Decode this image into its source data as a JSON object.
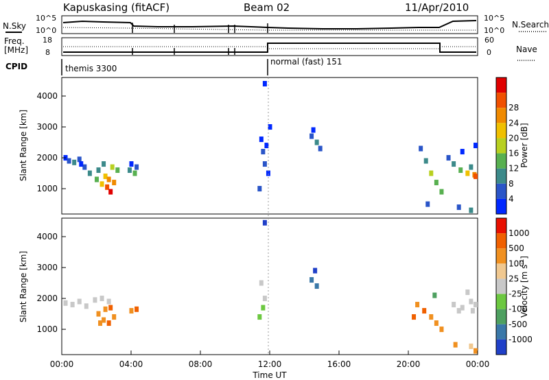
{
  "header": {
    "station": "Kapuskasing (fitACF)",
    "beam": "Beam 02",
    "date": "11/Apr/2010"
  },
  "strips": {
    "nsky_label": "N.Sky",
    "nsky_ticks": [
      "10^5",
      "10^0"
    ],
    "nsearch_label": "N.Search",
    "nsearch_ticks": [
      "10^5",
      "10^0"
    ],
    "freq_label_1": "Freq.",
    "freq_label_2": "[MHz]",
    "freq_ticks": [
      "18",
      "8"
    ],
    "nave_label": "Nave",
    "nave_ticks": [
      "60",
      "0"
    ],
    "cpid_label": "CPID",
    "cpid_segments": [
      "themis 3300",
      "normal (fast) 151"
    ]
  },
  "chart_data": [
    {
      "type": "heatmap",
      "title": "",
      "ylabel": "Slant Range [km]",
      "y_ticks": [
        "1000",
        "2000",
        "3000",
        "4000"
      ],
      "ylim": [
        180,
        4600
      ],
      "xlim_hours": [
        0,
        24
      ],
      "colorbar_label": "Power [dB]",
      "colorbar_ticks": [
        "4",
        "8",
        "12",
        "16",
        "20",
        "24",
        "28"
      ],
      "colors": [
        "#0028ff",
        "#2a55c8",
        "#3c8a8a",
        "#58b050",
        "#b8d020",
        "#f0c000",
        "#f08a00",
        "#f05000",
        "#e00000"
      ],
      "cells": [
        [
          0.1,
          2000,
          0
        ],
        [
          0.3,
          1900,
          1
        ],
        [
          0.6,
          1850,
          2
        ],
        [
          0.9,
          1950,
          1
        ],
        [
          1.2,
          1700,
          1
        ],
        [
          1.5,
          1500,
          2
        ],
        [
          1.9,
          1300,
          3
        ],
        [
          2.2,
          1150,
          5
        ],
        [
          2.5,
          1050,
          7
        ],
        [
          2.7,
          900,
          8
        ],
        [
          2.9,
          1200,
          6
        ],
        [
          3.1,
          1600,
          3
        ],
        [
          2.4,
          1400,
          5
        ],
        [
          2.6,
          1300,
          6
        ],
        [
          2.0,
          1600,
          2
        ],
        [
          2.3,
          1800,
          2
        ],
        [
          2.8,
          1700,
          4
        ],
        [
          1.0,
          1800,
          0
        ],
        [
          3.8,
          1600,
          2
        ],
        [
          4.2,
          1700,
          1
        ],
        [
          4.1,
          1500,
          3
        ],
        [
          3.9,
          1800,
          0
        ],
        [
          11.4,
          2600,
          0
        ],
        [
          11.5,
          2200,
          1
        ],
        [
          11.6,
          1800,
          1
        ],
        [
          11.7,
          2400,
          0
        ],
        [
          11.3,
          1000,
          1
        ],
        [
          11.6,
          4400,
          0
        ],
        [
          11.9,
          3000,
          0
        ],
        [
          11.8,
          1500,
          0
        ],
        [
          14.3,
          2700,
          1
        ],
        [
          14.6,
          2500,
          2
        ],
        [
          14.4,
          2900,
          0
        ],
        [
          14.8,
          2300,
          1
        ],
        [
          20.6,
          2300,
          1
        ],
        [
          20.9,
          1900,
          2
        ],
        [
          21.2,
          1500,
          4
        ],
        [
          21.5,
          1200,
          3
        ],
        [
          21.8,
          900,
          3
        ],
        [
          22.2,
          2000,
          1
        ],
        [
          22.5,
          1800,
          2
        ],
        [
          22.9,
          1600,
          3
        ],
        [
          23.3,
          1500,
          5
        ],
        [
          23.7,
          1450,
          6
        ],
        [
          24.0,
          1400,
          7
        ],
        [
          23.5,
          1700,
          2
        ],
        [
          23.9,
          2400,
          0
        ],
        [
          23.0,
          2200,
          0
        ],
        [
          21.0,
          500,
          1
        ],
        [
          22.8,
          400,
          1
        ],
        [
          23.5,
          300,
          2
        ]
      ]
    },
    {
      "type": "heatmap",
      "title": "",
      "ylabel": "Slant Range [km]",
      "y_ticks": [
        "1000",
        "2000",
        "3000",
        "4000"
      ],
      "ylim": [
        180,
        4600
      ],
      "xlim_hours": [
        0,
        24
      ],
      "xlabel": "Time UT",
      "x_ticks": [
        "00:00",
        "04:00",
        "08:00",
        "12:00",
        "16:00",
        "20:00",
        "00:00"
      ],
      "colorbar_label": "Velocity [m s",
      "colorbar_sup": "-1",
      "colorbar_label_end": "]",
      "colorbar_ticks": [
        "1000",
        "500",
        "100",
        "25",
        "-25",
        "-100",
        "-500",
        "-1000"
      ],
      "colors": [
        "#2040c8",
        "#3a78a8",
        "#4ea060",
        "#6cc840",
        "#c8c8c8",
        "#f0c890",
        "#f09020",
        "#f06000",
        "#e81000"
      ],
      "cells": [
        [
          0.1,
          1850,
          4
        ],
        [
          0.5,
          1800,
          4
        ],
        [
          0.9,
          1900,
          4
        ],
        [
          1.3,
          1750,
          4
        ],
        [
          1.8,
          1950,
          4
        ],
        [
          2.2,
          2000,
          4
        ],
        [
          2.6,
          1900,
          4
        ],
        [
          2.0,
          1500,
          6
        ],
        [
          2.3,
          1300,
          6
        ],
        [
          2.6,
          1200,
          7
        ],
        [
          2.9,
          1400,
          6
        ],
        [
          2.4,
          1650,
          6
        ],
        [
          2.7,
          1700,
          7
        ],
        [
          2.1,
          1200,
          6
        ],
        [
          3.9,
          1600,
          6
        ],
        [
          4.2,
          1650,
          7
        ],
        [
          11.4,
          2500,
          4
        ],
        [
          11.6,
          2000,
          4
        ],
        [
          11.5,
          1700,
          3
        ],
        [
          11.3,
          1400,
          3
        ],
        [
          11.6,
          4450,
          0
        ],
        [
          14.3,
          2600,
          1
        ],
        [
          14.6,
          2400,
          1
        ],
        [
          14.5,
          2900,
          0
        ],
        [
          20.4,
          1800,
          6
        ],
        [
          20.8,
          1600,
          7
        ],
        [
          21.2,
          1400,
          6
        ],
        [
          21.5,
          1200,
          6
        ],
        [
          21.8,
          1000,
          6
        ],
        [
          20.2,
          1400,
          7
        ],
        [
          22.5,
          1800,
          4
        ],
        [
          23.0,
          1700,
          4
        ],
        [
          23.5,
          1900,
          4
        ],
        [
          24.0,
          1800,
          4
        ],
        [
          22.8,
          1600,
          4
        ],
        [
          23.6,
          1600,
          4
        ],
        [
          23.3,
          2200,
          4
        ],
        [
          21.4,
          2100,
          2
        ],
        [
          22.6,
          500,
          6
        ],
        [
          23.5,
          450,
          5
        ],
        [
          23.9,
          300,
          6
        ]
      ]
    }
  ]
}
